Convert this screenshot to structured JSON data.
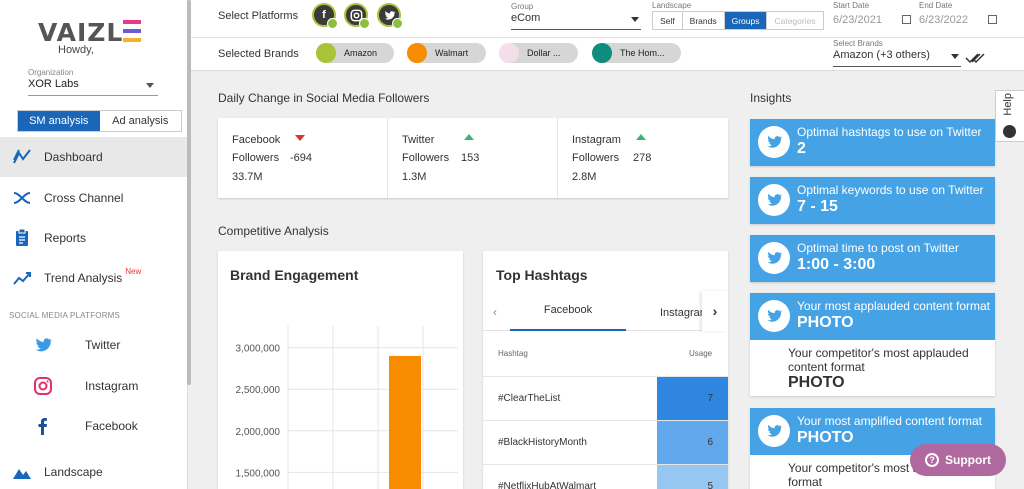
{
  "sidebar": {
    "logo": "VAIZLE",
    "howdy": "Howdy, ",
    "org_label": "Organization",
    "org_value": "XOR Labs",
    "toggle": [
      "SM analysis",
      "Ad analysis"
    ],
    "nav": [
      {
        "label": "Dashboard"
      },
      {
        "label": "Cross Channel"
      },
      {
        "label": "Reports"
      },
      {
        "label": "Trend Analysis",
        "badge": "New"
      }
    ],
    "sm_header": "SOCIAL MEDIA PLATFORMS",
    "sm_items": [
      "Twitter",
      "Instagram",
      "Facebook"
    ],
    "landscape": "Landscape"
  },
  "topbar": {
    "select_platforms": "Select Platforms",
    "group_label": "Group",
    "group_value": "eCom",
    "landscape_label": "Landscape",
    "landscape_options": [
      "Self",
      "Brands",
      "Groups",
      "Categories"
    ],
    "start_label": "Start Date",
    "start_value": "6/23/2021",
    "end_label": "End Date",
    "end_value": "6/23/2022",
    "selected_brands_label": "Selected Brands",
    "brands": [
      "Amazon",
      "Walmart",
      "Dollar ...",
      "The Hom..."
    ],
    "select_brands_label": "Select Brands",
    "select_brands_value": "Amazon (+3 others)"
  },
  "daily": {
    "title": "Daily Change in Social Media Followers",
    "cols": [
      {
        "platform": "Facebook",
        "label": "Followers",
        "change": "-694",
        "total": "33.7M",
        "direction": "down"
      },
      {
        "platform": "Twitter",
        "label": "Followers",
        "change": "153",
        "total": "1.3M",
        "direction": "up"
      },
      {
        "platform": "Instagram",
        "label": "Followers",
        "change": "278",
        "total": "2.8M",
        "direction": "up"
      }
    ]
  },
  "competitive_title": "Competitive Analysis",
  "brand_engagement": {
    "title": "Brand Engagement",
    "chart_data": {
      "type": "bar",
      "yticks": [
        "3,000,000",
        "2,500,000",
        "2,000,000",
        "1,500,000"
      ],
      "ylim": [
        1300000,
        3200000
      ],
      "values": [
        2900000
      ],
      "bar_color": "#f78c00"
    }
  },
  "hashtags": {
    "title": "Top Hashtags",
    "tabs": [
      "Facebook",
      "Instagram"
    ],
    "col_hashtag": "Hashtag",
    "col_usage": "Usage",
    "rows": [
      {
        "tag": "#ClearTheList",
        "usage": "7"
      },
      {
        "tag": "#BlackHistoryMonth",
        "usage": "6"
      },
      {
        "tag": "#NetflixHubAtWalmart",
        "usage": "5"
      }
    ]
  },
  "insights": {
    "title": "Insights",
    "cards": [
      {
        "line1": "Optimal hashtags to use on Twitter",
        "line2": "2"
      },
      {
        "line1": "Optimal keywords to use on Twitter",
        "line2": "7 - 15"
      },
      {
        "line1": "Optimal time to post on Twitter",
        "line2": "1:00 - 3:00"
      },
      {
        "line1": "Your most applauded content format",
        "line2": "PHOTO",
        "comp1": "Your competitor's most applauded content format",
        "comp2": "PHOTO"
      },
      {
        "line1": "Your most amplified content format",
        "line2": "PHOTO",
        "comp1": "Your competitor's most a... content format"
      }
    ]
  },
  "help": "Help",
  "support": "Support"
}
